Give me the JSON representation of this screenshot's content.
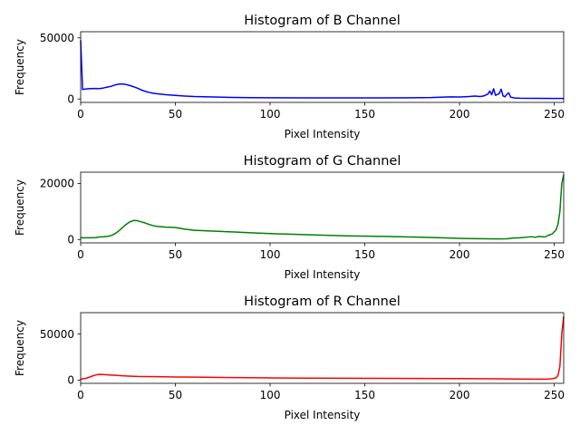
{
  "chart_data": [
    {
      "type": "line",
      "title": "Histogram of B Channel",
      "xlabel": "Pixel Intensity",
      "ylabel": "Frequency",
      "xlim": [
        0,
        255
      ],
      "ylim": [
        -2800,
        55000
      ],
      "xticks": [
        0,
        50,
        100,
        150,
        200,
        250
      ],
      "yticks": [
        0,
        50000
      ],
      "grid": false,
      "series": [
        {
          "color": "#0000ff",
          "points": [
            [
              0,
              48000
            ],
            [
              1,
              7800
            ],
            [
              3,
              8200
            ],
            [
              5,
              8500
            ],
            [
              8,
              8600
            ],
            [
              10,
              8500
            ],
            [
              12,
              9000
            ],
            [
              14,
              9700
            ],
            [
              16,
              10300
            ],
            [
              18,
              11400
            ],
            [
              20,
              12100
            ],
            [
              22,
              12300
            ],
            [
              24,
              11800
            ],
            [
              26,
              11000
            ],
            [
              28,
              10000
            ],
            [
              30,
              8800
            ],
            [
              32,
              7400
            ],
            [
              34,
              6300
            ],
            [
              36,
              5400
            ],
            [
              38,
              4800
            ],
            [
              40,
              4300
            ],
            [
              45,
              3500
            ],
            [
              50,
              2900
            ],
            [
              55,
              2400
            ],
            [
              60,
              2000
            ],
            [
              70,
              1600
            ],
            [
              80,
              1300
            ],
            [
              90,
              1100
            ],
            [
              100,
              1000
            ],
            [
              120,
              900
            ],
            [
              140,
              900
            ],
            [
              160,
              900
            ],
            [
              175,
              1000
            ],
            [
              185,
              1200
            ],
            [
              190,
              1500
            ],
            [
              195,
              1700
            ],
            [
              200,
              1600
            ],
            [
              205,
              2000
            ],
            [
              208,
              2400
            ],
            [
              211,
              2000
            ],
            [
              213,
              2600
            ],
            [
              215,
              4000
            ],
            [
              216,
              6500
            ],
            [
              217,
              3500
            ],
            [
              218,
              8300
            ],
            [
              219,
              3000
            ],
            [
              221,
              4500
            ],
            [
              222,
              8000
            ],
            [
              223,
              2500
            ],
            [
              224,
              1800
            ],
            [
              225,
              3800
            ],
            [
              226,
              5000
            ],
            [
              227,
              1500
            ],
            [
              228,
              1200
            ],
            [
              229,
              800
            ],
            [
              232,
              600
            ],
            [
              240,
              500
            ],
            [
              250,
              400
            ],
            [
              255,
              400
            ]
          ]
        }
      ]
    },
    {
      "type": "line",
      "title": "Histogram of G Channel",
      "xlabel": "Pixel Intensity",
      "ylabel": "Frequency",
      "xlim": [
        0,
        255
      ],
      "ylim": [
        -1200,
        24000
      ],
      "xticks": [
        0,
        50,
        100,
        150,
        200,
        250
      ],
      "yticks": [
        0,
        20000
      ],
      "grid": false,
      "series": [
        {
          "color": "#008000",
          "points": [
            [
              0,
              600
            ],
            [
              5,
              600
            ],
            [
              8,
              700
            ],
            [
              10,
              900
            ],
            [
              12,
              1000
            ],
            [
              14,
              1100
            ],
            [
              16,
              1400
            ],
            [
              18,
              2000
            ],
            [
              20,
              3000
            ],
            [
              22,
              4200
            ],
            [
              24,
              5400
            ],
            [
              26,
              6300
            ],
            [
              28,
              6800
            ],
            [
              30,
              6700
            ],
            [
              32,
              6300
            ],
            [
              34,
              5900
            ],
            [
              36,
              5400
            ],
            [
              38,
              5000
            ],
            [
              40,
              4700
            ],
            [
              45,
              4400
            ],
            [
              50,
              4300
            ],
            [
              55,
              3700
            ],
            [
              60,
              3300
            ],
            [
              70,
              3000
            ],
            [
              80,
              2700
            ],
            [
              90,
              2400
            ],
            [
              100,
              2100
            ],
            [
              120,
              1700
            ],
            [
              140,
              1300
            ],
            [
              160,
              1100
            ],
            [
              180,
              800
            ],
            [
              190,
              600
            ],
            [
              200,
              400
            ],
            [
              210,
              300
            ],
            [
              220,
              200
            ],
            [
              225,
              250
            ],
            [
              228,
              500
            ],
            [
              232,
              600
            ],
            [
              235,
              800
            ],
            [
              238,
              1000
            ],
            [
              240,
              800
            ],
            [
              242,
              1100
            ],
            [
              245,
              900
            ],
            [
              247,
              1500
            ],
            [
              249,
              2000
            ],
            [
              251,
              3500
            ],
            [
              252,
              5500
            ],
            [
              253,
              10000
            ],
            [
              254,
              20000
            ],
            [
              255,
              23000
            ]
          ]
        }
      ]
    },
    {
      "type": "line",
      "title": "Histogram of R Channel",
      "xlabel": "Pixel Intensity",
      "ylabel": "Frequency",
      "xlim": [
        0,
        255
      ],
      "ylim": [
        -3500,
        73000
      ],
      "xticks": [
        0,
        50,
        100,
        150,
        200,
        250
      ],
      "yticks": [
        0,
        50000
      ],
      "grid": false,
      "series": [
        {
          "color": "#ff0000",
          "points": [
            [
              0,
              1000
            ],
            [
              3,
              2000
            ],
            [
              5,
              3500
            ],
            [
              7,
              5000
            ],
            [
              9,
              6000
            ],
            [
              10,
              6200
            ],
            [
              12,
              6000
            ],
            [
              15,
              5600
            ],
            [
              20,
              5000
            ],
            [
              25,
              4400
            ],
            [
              30,
              4000
            ],
            [
              40,
              3700
            ],
            [
              50,
              3400
            ],
            [
              60,
              3200
            ],
            [
              70,
              3000
            ],
            [
              80,
              2800
            ],
            [
              90,
              2600
            ],
            [
              100,
              2400
            ],
            [
              120,
              2200
            ],
            [
              140,
              2000
            ],
            [
              160,
              1900
            ],
            [
              180,
              1800
            ],
            [
              200,
              1600
            ],
            [
              220,
              1400
            ],
            [
              230,
              1200
            ],
            [
              240,
              1000
            ],
            [
              245,
              1000
            ],
            [
              247,
              1100
            ],
            [
              249,
              1500
            ],
            [
              251,
              2500
            ],
            [
              252,
              5000
            ],
            [
              253,
              15000
            ],
            [
              254,
              50000
            ],
            [
              255,
              69000
            ]
          ]
        }
      ]
    }
  ]
}
